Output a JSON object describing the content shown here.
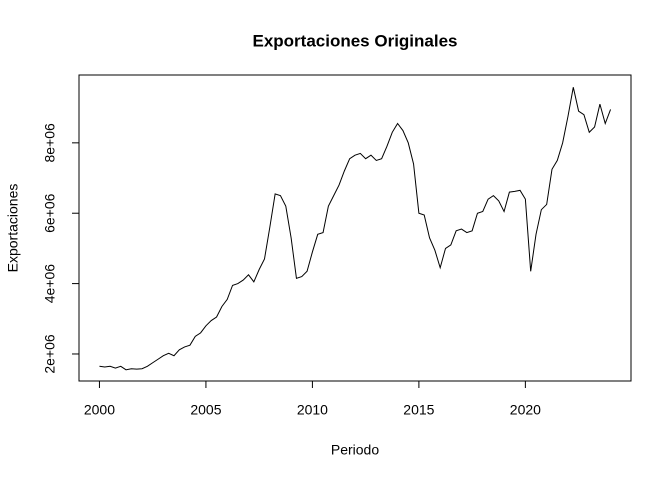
{
  "chart_data": {
    "type": "line",
    "title": "Exportaciones Originales",
    "x_label": "Periodo",
    "y_label": "Exportaciones",
    "color": "#000000",
    "x": [
      2000,
      2000.25,
      2000.5,
      2000.75,
      2001,
      2001.25,
      2001.5,
      2001.75,
      2002,
      2002.25,
      2002.5,
      2002.75,
      2003,
      2003.25,
      2003.5,
      2003.75,
      2004,
      2004.25,
      2004.5,
      2004.75,
      2005,
      2005.25,
      2005.5,
      2005.75,
      2006,
      2006.25,
      2006.5,
      2006.75,
      2007,
      2007.25,
      2007.5,
      2007.75,
      2008,
      2008.25,
      2008.5,
      2008.75,
      2009,
      2009.25,
      2009.5,
      2009.75,
      2010,
      2010.25,
      2010.5,
      2010.75,
      2011,
      2011.25,
      2011.5,
      2011.75,
      2012,
      2012.25,
      2012.5,
      2012.75,
      2013,
      2013.25,
      2013.5,
      2013.75,
      2014,
      2014.25,
      2014.5,
      2014.75,
      2015,
      2015.25,
      2015.5,
      2015.75,
      2016,
      2016.25,
      2016.5,
      2016.75,
      2017,
      2017.25,
      2017.5,
      2017.75,
      2018,
      2018.25,
      2018.5,
      2018.75,
      2019,
      2019.25,
      2019.5,
      2019.75,
      2020,
      2020.25,
      2020.5,
      2020.75,
      2021,
      2021.25,
      2021.5,
      2021.75,
      2022,
      2022.25,
      2022.5,
      2022.75,
      2023,
      2023.25,
      2023.5,
      2023.75,
      2024
    ],
    "values": [
      1650000,
      1630000,
      1650000,
      1600000,
      1650000,
      1550000,
      1580000,
      1570000,
      1580000,
      1650000,
      1750000,
      1850000,
      1950000,
      2020000,
      1950000,
      2120000,
      2200000,
      2250000,
      2500000,
      2600000,
      2800000,
      2950000,
      3050000,
      3350000,
      3550000,
      3950000,
      4000000,
      4100000,
      4250000,
      4050000,
      4400000,
      4700000,
      5600000,
      6550000,
      6500000,
      6200000,
      5300000,
      4150000,
      4200000,
      4350000,
      4900000,
      5400000,
      5450000,
      6200000,
      6500000,
      6800000,
      7200000,
      7550000,
      7650000,
      7700000,
      7550000,
      7650000,
      7500000,
      7550000,
      7900000,
      8300000,
      8550000,
      8350000,
      8000000,
      7400000,
      6000000,
      5950000,
      5300000,
      4950000,
      4450000,
      5000000,
      5100000,
      5500000,
      5550000,
      5450000,
      5500000,
      6000000,
      6050000,
      6400000,
      6500000,
      6350000,
      6050000,
      6600000,
      6620000,
      6650000,
      6400000,
      4350000,
      5400000,
      6100000,
      6250000,
      7250000,
      7500000,
      8000000,
      8750000,
      9580000,
      8900000,
      8800000,
      8300000,
      8450000,
      9100000,
      8550000,
      8950000
    ],
    "xlim": [
      1999.04,
      2024.96
    ],
    "ylim": [
      1232000,
      9928000
    ],
    "xticks": [
      2000,
      2005,
      2010,
      2015,
      2020
    ],
    "yticks": [
      {
        "value": 2000000,
        "label": "2e+06"
      },
      {
        "value": 4000000,
        "label": "4e+06"
      },
      {
        "value": 6000000,
        "label": "6e+06"
      },
      {
        "value": 8000000,
        "label": "8e+06"
      }
    ]
  }
}
